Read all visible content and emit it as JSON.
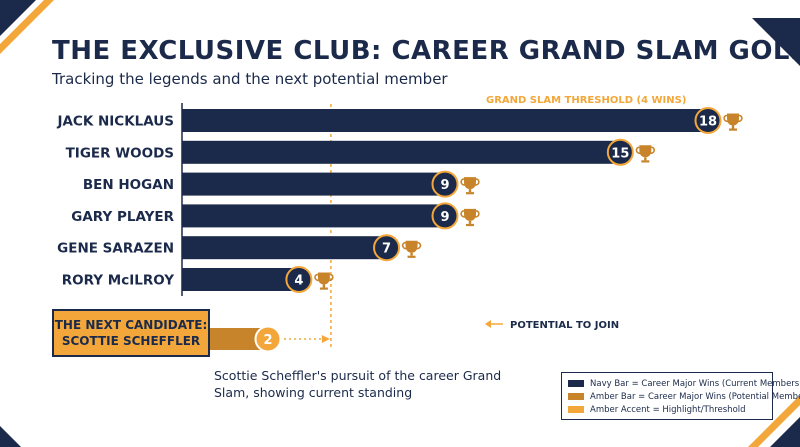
{
  "title": "THE EXCLUSIVE CLUB: CAREER GRAND SLAM GOLFERS",
  "subtitle": "Tracking the legends and the next potential member",
  "threshold_label": "GRAND SLAM THRESHOLD (4 WINS)",
  "potential_label": "POTENTIAL TO JOIN",
  "candidate": {
    "line1": "THE NEXT CANDIDATE:",
    "line2": "SCOTTIE SCHEFFLER"
  },
  "description": "Scottie Scheffler's pursuit of the career Grand Slam, showing current standing",
  "legend": [
    {
      "label": "Navy Bar = Career Major Wins (Current Members)",
      "color": "#1b2a4a"
    },
    {
      "label": "Amber Bar = Career Major Wins (Potential Member)",
      "color": "#c8842a"
    },
    {
      "label": "Amber Accent = Highlight/Threshold",
      "color": "#f3a73a"
    }
  ],
  "colors": {
    "navy": "#1b2a4a",
    "amber": "#c8842a",
    "accent": "#f3a73a",
    "trophy": "#c8842a"
  },
  "chart_data": {
    "type": "bar",
    "orientation": "horizontal",
    "title": "THE EXCLUSIVE CLUB: CAREER GRAND SLAM GOLFERS",
    "categories": [
      "JACK NICKLAUS",
      "TIGER WOODS",
      "BEN HOGAN",
      "GARY PLAYER",
      "GENE SARAZEN",
      "RORY McILROY"
    ],
    "values": [
      18,
      15,
      9,
      9,
      7,
      4
    ],
    "candidate": {
      "name": "SCOTTIE SCHEFFLER",
      "value": 2
    },
    "threshold": 4,
    "xlim": [
      0,
      18
    ]
  }
}
